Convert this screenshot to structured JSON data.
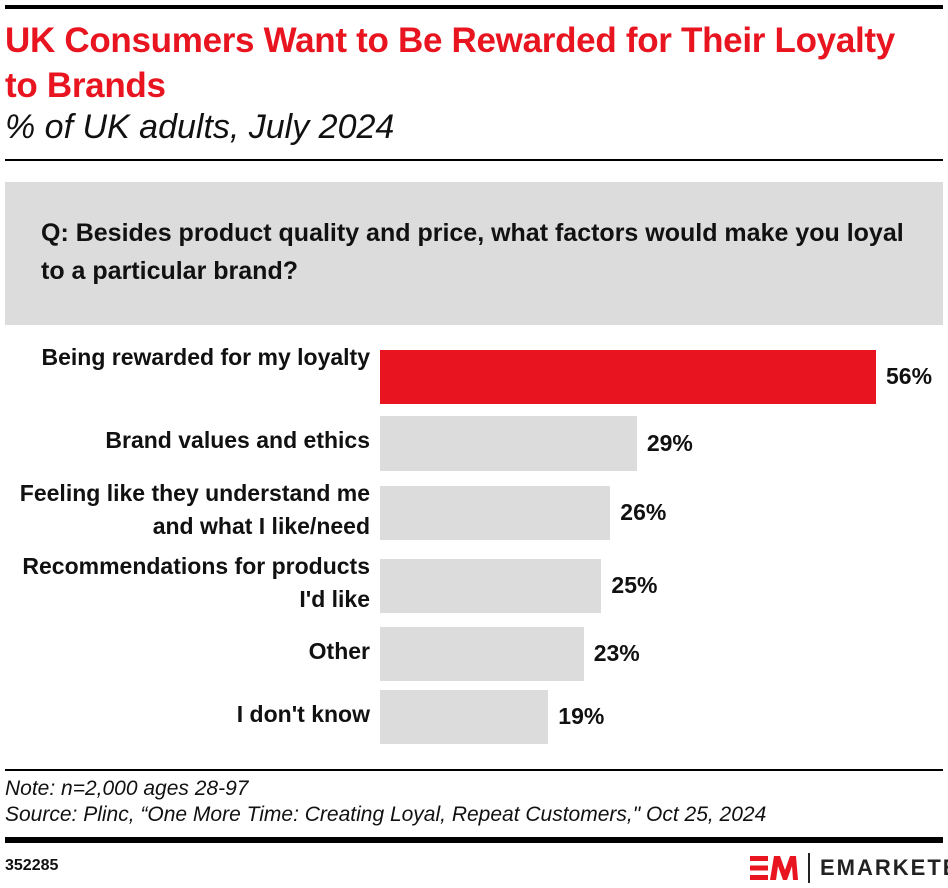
{
  "header": {
    "title": "UK Consumers Want to Be Rewarded for Their Loyalty to Brands",
    "subtitle": "% of UK adults, July 2024"
  },
  "question": "Q: Besides product quality and price, what factors would make you loyal to a particular brand?",
  "chart_data": {
    "type": "bar",
    "orientation": "horizontal",
    "categories": [
      "Being rewarded for my loyalty",
      "Brand values and ethics",
      "Feeling like they understand me and what I like/need",
      "Recommendations for products I'd like",
      "Other",
      "I don't know"
    ],
    "values": [
      56,
      29,
      26,
      25,
      23,
      19
    ],
    "data_labels": [
      "56%",
      "29%",
      "26%",
      "25%",
      "23%",
      "19%"
    ],
    "unit": "%",
    "highlight_index": 0,
    "colors": {
      "highlight": "#e8141f",
      "default": "#dcdcdc"
    },
    "grid": false
  },
  "footer": {
    "note": "Note: n=2,000 ages 28-97",
    "source": "Source: Plinc, “One More Time: Creating Loyal, Repeat Customers,\" Oct 25, 2024",
    "chart_id": "352285",
    "logo": "EMARKETER"
  }
}
